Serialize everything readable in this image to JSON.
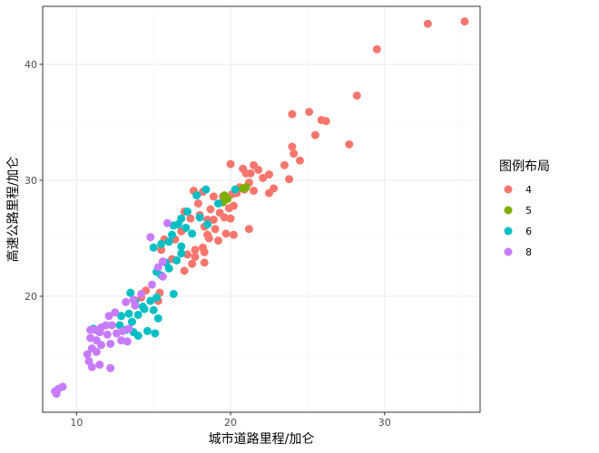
{
  "chart_data": {
    "type": "scatter",
    "xlabel": "城市道路里程/加仑",
    "ylabel": "高速公路里程/加仑",
    "xlim": [
      7.8,
      36.2
    ],
    "ylim": [
      10.0,
      45.0
    ],
    "x_ticks": [
      10,
      20,
      30
    ],
    "y_ticks": [
      20,
      30,
      40
    ],
    "x_tick_labels": [
      "10",
      "20",
      "30"
    ],
    "y_tick_labels": [
      "20",
      "30",
      "40"
    ],
    "grid": true,
    "legend": {
      "title": "图例布局",
      "placement": "right",
      "entries": [
        {
          "label": "4",
          "color": "#F8766D"
        },
        {
          "label": "5",
          "color": "#7CAE00"
        },
        {
          "label": "6",
          "color": "#00BFC4"
        },
        {
          "label": "8",
          "color": "#C77CFF"
        }
      ]
    },
    "series": [
      {
        "name": "4",
        "color": "#F8766D",
        "points": [
          [
            35.2,
            43.7
          ],
          [
            32.8,
            43.5
          ],
          [
            29.5,
            41.3
          ],
          [
            28.2,
            37.3
          ],
          [
            27.7,
            33.1
          ],
          [
            26.2,
            35.1
          ],
          [
            25.9,
            35.2
          ],
          [
            25.1,
            35.9
          ],
          [
            24.0,
            35.7
          ],
          [
            25.5,
            33.9
          ],
          [
            24.0,
            32.9
          ],
          [
            24.1,
            32.3
          ],
          [
            24.5,
            31.7
          ],
          [
            23.8,
            30.1
          ],
          [
            23.5,
            31.3
          ],
          [
            22.5,
            30.5
          ],
          [
            22.1,
            30.2
          ],
          [
            22.8,
            29.3
          ],
          [
            22.5,
            28.9
          ],
          [
            21.8,
            30.9
          ],
          [
            21.5,
            31.3
          ],
          [
            21.3,
            30.6
          ],
          [
            21.0,
            30.6
          ],
          [
            20.8,
            31.0
          ],
          [
            20.0,
            31.4
          ],
          [
            21.2,
            29.8
          ],
          [
            21.5,
            29.1
          ],
          [
            20.6,
            29.4
          ],
          [
            20.4,
            28.9
          ],
          [
            20.9,
            29.2
          ],
          [
            20.1,
            28.8
          ],
          [
            19.5,
            28.6
          ],
          [
            18.9,
            28.6
          ],
          [
            18.2,
            29.0
          ],
          [
            17.6,
            29.1
          ],
          [
            17.9,
            28.0
          ],
          [
            18.7,
            27.5
          ],
          [
            19.3,
            27.2
          ],
          [
            19.9,
            27.6
          ],
          [
            20.2,
            27.8
          ],
          [
            20.0,
            26.7
          ],
          [
            19.6,
            26.8
          ],
          [
            18.9,
            26.6
          ],
          [
            18.5,
            26.6
          ],
          [
            18.0,
            27.0
          ],
          [
            17.4,
            26.7
          ],
          [
            17.0,
            27.3
          ],
          [
            16.8,
            25.6
          ],
          [
            18.3,
            26.0
          ],
          [
            18.5,
            25.3
          ],
          [
            19.0,
            25.8
          ],
          [
            19.7,
            25.4
          ],
          [
            20.2,
            25.3
          ],
          [
            21.2,
            25.8
          ],
          [
            19.2,
            24.8
          ],
          [
            18.6,
            25.0
          ],
          [
            18.2,
            24.2
          ],
          [
            17.7,
            24.0
          ],
          [
            16.4,
            24.9
          ],
          [
            15.7,
            24.9
          ],
          [
            15.5,
            24.0
          ],
          [
            16.2,
            23.2
          ],
          [
            17.2,
            23.6
          ],
          [
            17.7,
            23.4
          ],
          [
            17.5,
            22.8
          ],
          [
            18.3,
            22.9
          ],
          [
            18.3,
            23.8
          ],
          [
            17.0,
            22.2
          ],
          [
            15.4,
            20.3
          ],
          [
            14.5,
            20.5
          ],
          [
            14.2,
            19.9
          ],
          [
            15.3,
            19.6
          ]
        ]
      },
      {
        "name": "5",
        "color": "#7CAE00",
        "points": [
          [
            20.8,
            29.3
          ],
          [
            21.0,
            29.4
          ],
          [
            19.6,
            28.7
          ],
          [
            19.8,
            28.4
          ],
          [
            19.5,
            28.1
          ]
        ]
      },
      {
        "name": "6",
        "color": "#00BFC4",
        "points": [
          [
            20.3,
            29.2
          ],
          [
            19.2,
            28.0
          ],
          [
            18.4,
            29.2
          ],
          [
            17.8,
            28.7
          ],
          [
            16.8,
            26.7
          ],
          [
            17.1,
            25.9
          ],
          [
            16.6,
            26.2
          ],
          [
            16.3,
            26.1
          ],
          [
            17.2,
            27.3
          ],
          [
            18.0,
            26.8
          ],
          [
            18.5,
            26.2
          ],
          [
            17.5,
            25.4
          ],
          [
            16.8,
            24.3
          ],
          [
            16.2,
            25.3
          ],
          [
            16.0,
            24.7
          ],
          [
            15.5,
            24.5
          ],
          [
            15.0,
            24.2
          ],
          [
            16.8,
            23.7
          ],
          [
            16.5,
            23.1
          ],
          [
            15.8,
            22.9
          ],
          [
            16.0,
            22.4
          ],
          [
            15.2,
            22.1
          ],
          [
            15.5,
            21.8
          ],
          [
            16.3,
            20.2
          ],
          [
            15.2,
            19.9
          ],
          [
            14.8,
            19.6
          ],
          [
            14.3,
            19.1
          ],
          [
            13.5,
            20.3
          ],
          [
            13.8,
            19.6
          ],
          [
            15.0,
            18.8
          ],
          [
            14.4,
            18.9
          ],
          [
            14.0,
            18.4
          ],
          [
            13.4,
            18.5
          ],
          [
            12.9,
            18.3
          ],
          [
            15.3,
            18.1
          ],
          [
            13.6,
            17.8
          ],
          [
            12.8,
            17.5
          ],
          [
            13.2,
            17.1
          ],
          [
            13.7,
            16.9
          ],
          [
            14.6,
            17.0
          ],
          [
            15.1,
            16.8
          ],
          [
            14.0,
            16.6
          ],
          [
            11.1,
            17.2
          ]
        ]
      },
      {
        "name": "8",
        "color": "#C77CFF",
        "points": [
          [
            15.9,
            26.3
          ],
          [
            14.8,
            25.1
          ],
          [
            15.6,
            23.0
          ],
          [
            15.3,
            22.5
          ],
          [
            15.6,
            21.7
          ],
          [
            14.9,
            21.0
          ],
          [
            14.2,
            20.2
          ],
          [
            13.7,
            19.7
          ],
          [
            13.8,
            19.2
          ],
          [
            13.2,
            19.5
          ],
          [
            12.5,
            18.6
          ],
          [
            12.1,
            18.3
          ],
          [
            12.3,
            17.5
          ],
          [
            11.9,
            17.5
          ],
          [
            11.6,
            17.3
          ],
          [
            11.2,
            17.1
          ],
          [
            10.9,
            17.1
          ],
          [
            11.5,
            16.9
          ],
          [
            12.0,
            16.7
          ],
          [
            12.6,
            16.8
          ],
          [
            13.0,
            17.0
          ],
          [
            13.4,
            17.2
          ],
          [
            12.9,
            16.2
          ],
          [
            12.2,
            15.9
          ],
          [
            11.6,
            15.8
          ],
          [
            11.3,
            16.2
          ],
          [
            10.9,
            16.4
          ],
          [
            11.0,
            15.5
          ],
          [
            10.7,
            15.0
          ],
          [
            10.8,
            14.4
          ],
          [
            11.5,
            14.1
          ],
          [
            11.0,
            13.9
          ],
          [
            12.2,
            13.8
          ],
          [
            11.3,
            15.2
          ],
          [
            13.3,
            16.1
          ],
          [
            9.1,
            12.2
          ],
          [
            8.8,
            12.0
          ],
          [
            8.6,
            11.8
          ],
          [
            8.7,
            11.6
          ]
        ]
      }
    ]
  }
}
